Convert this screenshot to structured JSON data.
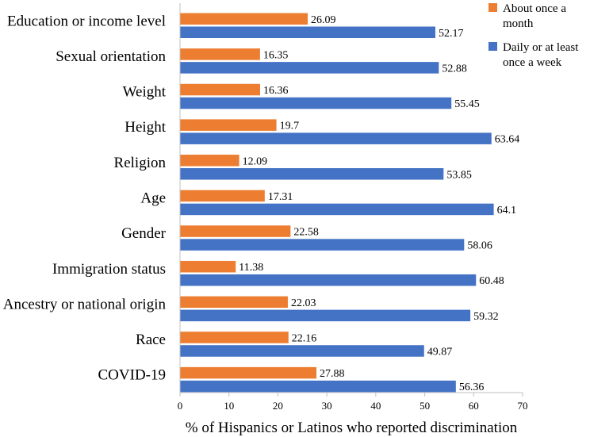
{
  "chart_data": {
    "type": "bar",
    "orientation": "horizontal",
    "title": "",
    "xlabel": "% of Hispanics or Latinos who reported discrimination",
    "ylabel": "",
    "xlim": [
      0,
      70
    ],
    "xticks": [
      0,
      10,
      20,
      30,
      40,
      50,
      60,
      70
    ],
    "grid": false,
    "legend_position": "top-right",
    "categories": [
      "Education or income level",
      "Sexual orientation",
      "Weight",
      "Height",
      "Religion",
      "Age",
      "Gender",
      "Immigration status",
      "Ancestry or national origin",
      "Race",
      "COVID-19"
    ],
    "series": [
      {
        "name": "About once a month",
        "legend_lines": [
          "About once a",
          "month"
        ],
        "color": "#ED7D31",
        "values": [
          26.09,
          16.35,
          16.36,
          19.7,
          12.09,
          17.31,
          22.58,
          11.38,
          22.03,
          22.16,
          27.88
        ]
      },
      {
        "name": "Daily or at least once a week",
        "legend_lines": [
          "Daily or at least",
          "once a week"
        ],
        "color": "#4472C4",
        "values": [
          52.17,
          52.88,
          55.45,
          63.64,
          53.85,
          64.1,
          58.06,
          60.48,
          59.32,
          49.87,
          56.36
        ]
      }
    ]
  }
}
